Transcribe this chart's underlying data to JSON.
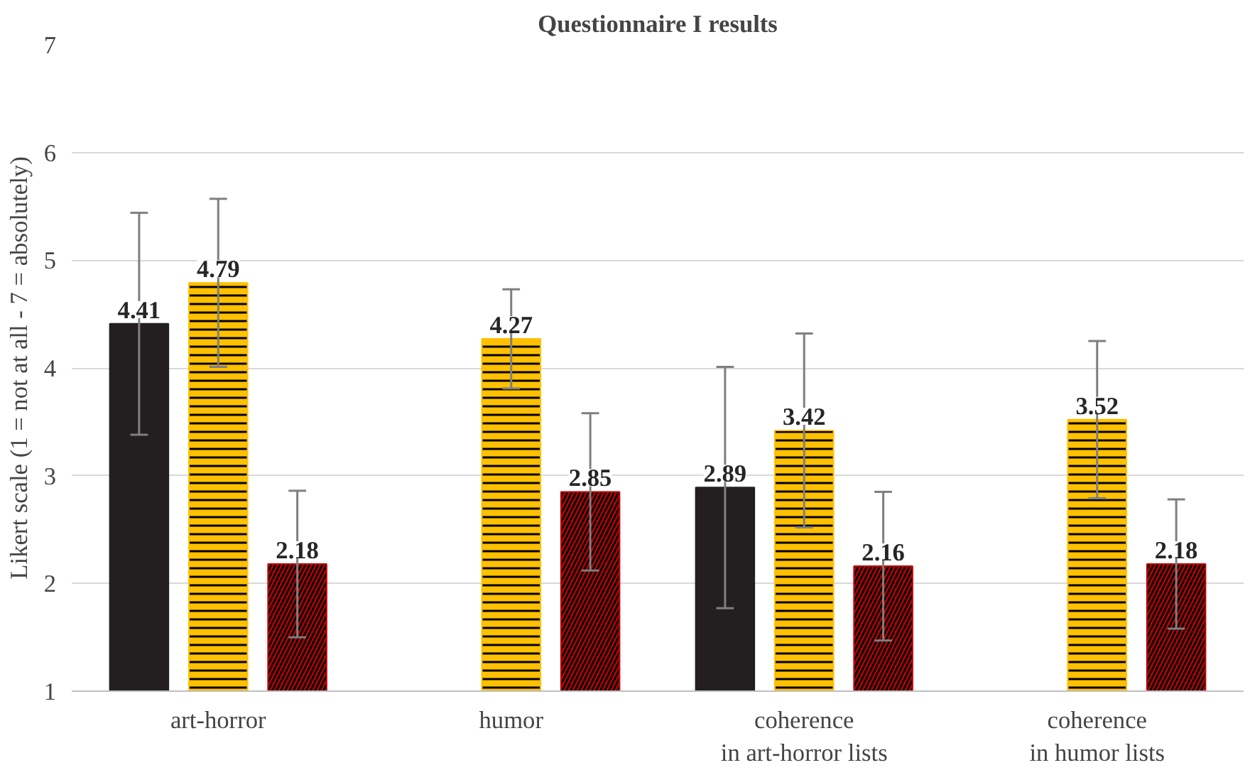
{
  "chart_data": {
    "type": "bar",
    "title": "Questionnaire I results",
    "ylabel": "Likert scale (1 = not at all - 7 = absolutely)",
    "categories": [
      "art-horror",
      "humor",
      "coherence\nin art-horror lists",
      "coherence\nin humor lists"
    ],
    "series": [
      {
        "color": "#231f20",
        "values": [
          4.41,
          null,
          2.89,
          null
        ],
        "errors": [
          1.03,
          null,
          1.12,
          null
        ]
      },
      {
        "color": "#ffc000",
        "values": [
          4.79,
          4.27,
          3.42,
          3.52
        ],
        "errors": [
          0.78,
          0.46,
          0.9,
          0.73
        ]
      },
      {
        "color": "#c00000",
        "values": [
          2.18,
          2.85,
          2.16,
          2.18
        ],
        "errors": [
          0.68,
          0.73,
          0.69,
          0.6
        ]
      }
    ],
    "ylim": [
      1,
      7
    ],
    "yticks": [
      1,
      2,
      3,
      4,
      5,
      6,
      7
    ],
    "grid": "y",
    "data_labels": true
  }
}
